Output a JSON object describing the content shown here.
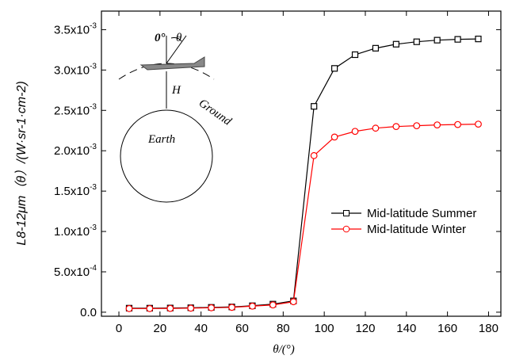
{
  "chart_data": {
    "type": "line",
    "xlabel": "θ/(°)",
    "ylabel": "L8-12μm（θ）/(W·sr-1·cm-2)",
    "x": [
      5,
      15,
      25,
      35,
      45,
      55,
      65,
      75,
      85,
      95,
      105,
      115,
      125,
      135,
      145,
      155,
      165,
      175
    ],
    "series": [
      {
        "name": "Mid-latitude Summer",
        "color": "#000000",
        "marker": "square",
        "values": [
          5e-05,
          5e-05,
          5.2e-05,
          5.5e-05,
          6e-05,
          6.5e-05,
          8e-05,
          0.0001,
          0.00014,
          0.00255,
          0.00302,
          0.00319,
          0.00327,
          0.00332,
          0.00335,
          0.00337,
          0.00338,
          0.003385
        ]
      },
      {
        "name": "Mid-latitude Winter",
        "color": "#ff0000",
        "marker": "circle",
        "values": [
          4.5e-05,
          4.5e-05,
          4.7e-05,
          5e-05,
          5.5e-05,
          6e-05,
          7.5e-05,
          9e-05,
          0.00013,
          0.00194,
          0.00217,
          0.00224,
          0.00228,
          0.0023,
          0.00231,
          0.00232,
          0.002325,
          0.00233
        ]
      }
    ],
    "xlim": [
      -8.5,
      186
    ],
    "ylim": [
      -5e-05,
      0.00373
    ],
    "xticks": [
      0,
      20,
      40,
      60,
      80,
      100,
      120,
      140,
      160,
      180
    ],
    "yticks": [
      {
        "value": 0,
        "label": "0.0"
      },
      {
        "value": 0.0005,
        "label": "5.0x10-4"
      },
      {
        "value": 0.001,
        "label": "1.0x10-3"
      },
      {
        "value": 0.0015,
        "label": "1.5x10-3"
      },
      {
        "value": 0.002,
        "label": "2.0x10-3"
      },
      {
        "value": 0.0025,
        "label": "2.5x10-3"
      },
      {
        "value": 0.003,
        "label": "3.0x10-3"
      },
      {
        "value": 0.0035,
        "label": "3.5x10-3"
      }
    ],
    "legend": "right",
    "annotations": [
      "0°",
      "θ",
      "H",
      "Earth",
      "Ground"
    ]
  }
}
